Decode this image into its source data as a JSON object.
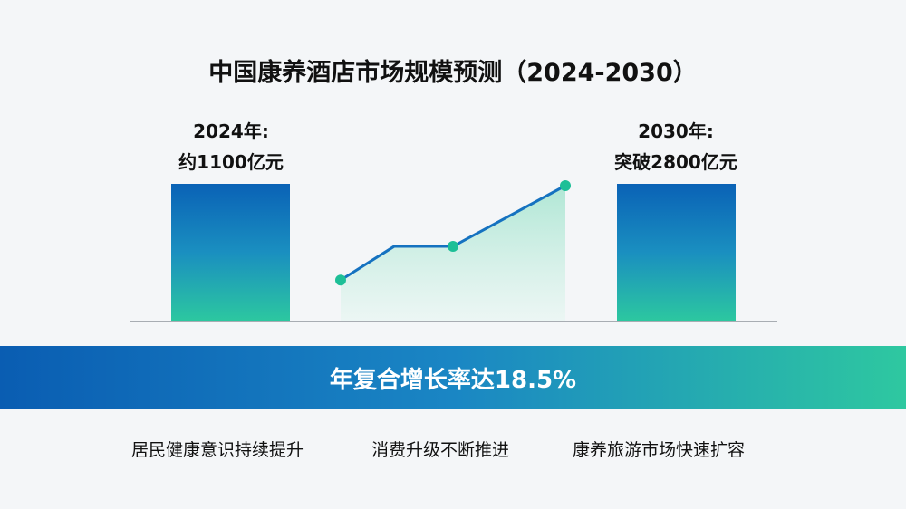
{
  "title": "中国康养酒店市场规模预测（2024-2030）",
  "chart_data": {
    "type": "bar",
    "title": "中国康养酒店市场规模预测（2024-2030）",
    "categories": [
      "2024年",
      "2030年"
    ],
    "values": [
      1100,
      2800
    ],
    "unit": "亿元",
    "labels": [
      {
        "line1": "2024年:",
        "line2": "约1100亿元"
      },
      {
        "line1": "2030年:",
        "line2": "突破2800亿元"
      }
    ],
    "trend_line": {
      "type": "area",
      "relative_values": [
        0.3,
        0.55,
        0.55,
        1.0
      ],
      "markers": [
        true,
        false,
        true,
        true
      ]
    },
    "grid": false,
    "colors": {
      "bar_top": "#0a62b6",
      "bar_bottom": "#2cc7a0",
      "line": "#1572c0",
      "marker": "#1dbf97"
    }
  },
  "banner": {
    "text": "年复合增长率达18.5%"
  },
  "drivers": [
    "居民健康意识持续提升",
    "消费升级不断推进",
    "康养旅游市场快速扩容"
  ]
}
